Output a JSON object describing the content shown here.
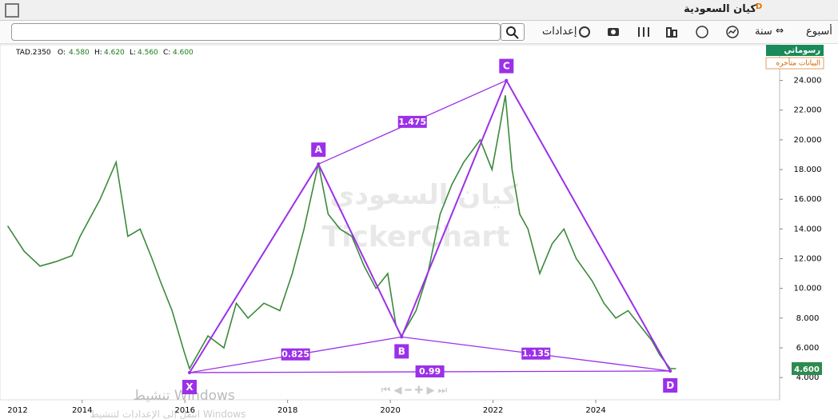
{
  "header": {
    "title": "كيان السعودية",
    "flag": "D"
  },
  "toolbar": {
    "week": "أسبوع",
    "year": "سنة",
    "settings": "إعدادات"
  },
  "legend": {
    "symbol": "TAD.2350",
    "open_label": "O:",
    "open": "4.580",
    "high_label": "H:",
    "high": "4.620",
    "low_label": "L:",
    "low": "4.560",
    "close_label": "C:",
    "close": "4.600"
  },
  "side": {
    "drawings": "رسوماتي",
    "delayed": "البيانات متأخره"
  },
  "watermark": {
    "name": "كيان السعودي",
    "brand": "TickerChart"
  },
  "windows": {
    "title": "تنشيط Windows",
    "hint": "انتقل إلى الإعدادات لتنشيط Windows"
  },
  "chart_data": {
    "type": "line",
    "x": [
      2012.55,
      2012.87,
      2013.18,
      2013.49,
      2013.8,
      2013.96,
      2014.35,
      2014.66,
      2014.89,
      2015.13,
      2015.36,
      2015.52,
      2015.75,
      2015.98,
      2016.09,
      2016.45,
      2016.76,
      2017.0,
      2017.23,
      2017.54,
      2017.85,
      2018.09,
      2018.32,
      2018.6,
      2018.79,
      2019.02,
      2019.25,
      2019.49,
      2019.72,
      2019.95,
      2020.11,
      2020.22,
      2020.5,
      2020.73,
      2020.97,
      2021.2,
      2021.43,
      2021.75,
      2021.98,
      2022.14,
      2022.24,
      2022.37,
      2022.52,
      2022.68,
      2022.91,
      2023.15,
      2023.38,
      2023.62,
      2023.93,
      2024.16,
      2024.39,
      2024.63,
      2024.86,
      2025.09,
      2025.25,
      2025.45,
      2025.56
    ],
    "series": [
      {
        "name": "TAD.2350",
        "color": "#3b8a3b",
        "values": [
          14.2,
          12.5,
          11.5,
          11.8,
          12.2,
          13.5,
          16,
          18.5,
          13.5,
          14,
          12,
          10.5,
          8.5,
          5.8,
          4.6,
          6.8,
          6,
          9,
          8,
          9,
          8.5,
          11,
          14,
          18.4,
          15,
          14,
          13.5,
          11.5,
          10,
          11,
          7.5,
          6.8,
          8.5,
          11,
          15,
          17,
          18.5,
          20,
          18,
          21,
          23,
          18,
          15,
          14,
          11,
          13,
          14,
          12,
          10.5,
          9,
          8,
          8.5,
          7.5,
          6.5,
          5.5,
          4.6,
          4.6
        ]
      }
    ],
    "xlim": [
      2012.4,
      2027.58
    ],
    "xticks": [
      2012,
      2014,
      2016,
      2018,
      2020,
      2022,
      2024
    ],
    "ylim": [
      2.5,
      26.4
    ],
    "yticks": [
      {
        "value": 4,
        "label": "4.000"
      },
      {
        "value": 6,
        "label": "6.000"
      },
      {
        "value": 8,
        "label": "8.000"
      },
      {
        "value": 10,
        "label": "10.000"
      },
      {
        "value": 12,
        "label": "12.000"
      },
      {
        "value": 14,
        "label": "14.000"
      },
      {
        "value": 16,
        "label": "16.000"
      },
      {
        "value": 18,
        "label": "18.000"
      },
      {
        "value": 20,
        "label": "20.000"
      },
      {
        "value": 22,
        "label": "22.000"
      },
      {
        "value": 24,
        "label": "24.000"
      }
    ],
    "last_price": {
      "value": 4.6,
      "label": "4.600"
    },
    "pattern": {
      "color": "#9b30e8",
      "points": [
        {
          "label": "X",
          "x": 2016.09,
          "y": 4.33
        },
        {
          "label": "A",
          "x": 2018.6,
          "y": 18.37
        },
        {
          "label": "B",
          "x": 2020.22,
          "y": 6.73
        },
        {
          "label": "C",
          "x": 2022.26,
          "y": 24
        },
        {
          "label": "D",
          "x": 2025.45,
          "y": 4.44
        }
      ],
      "ratios": [
        "0.825",
        "1.475",
        "1.135",
        "0.99"
      ]
    }
  }
}
